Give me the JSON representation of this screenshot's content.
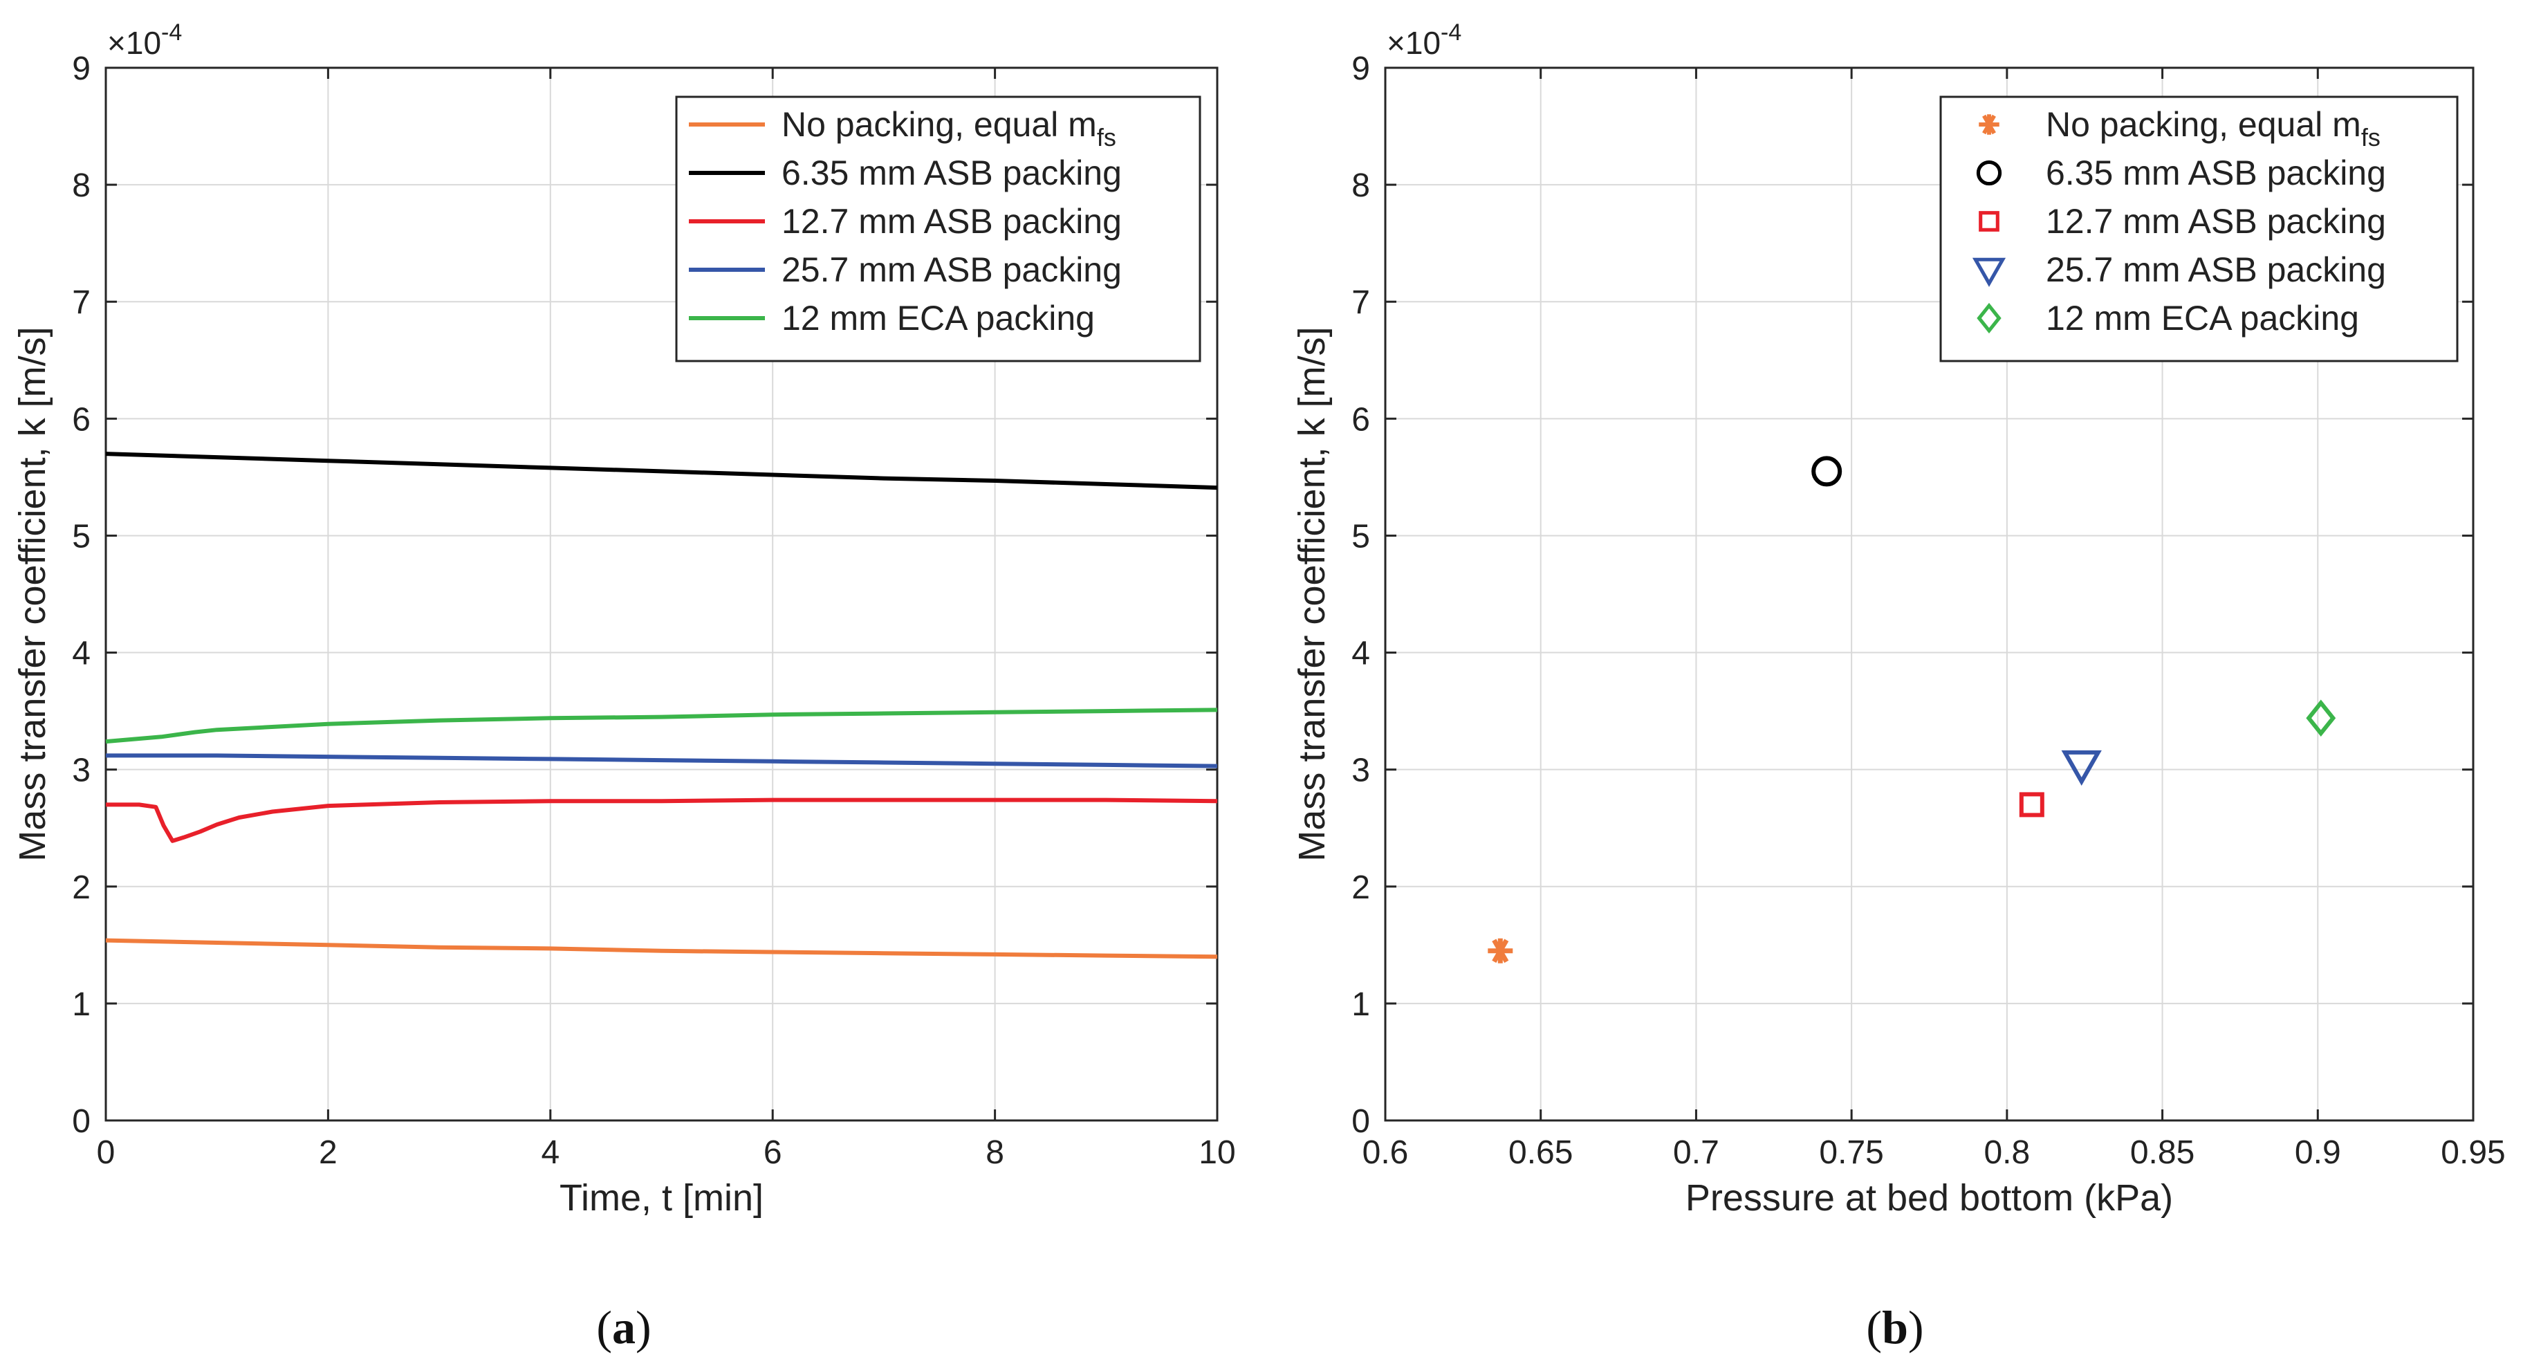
{
  "chart_data": [
    {
      "type": "line",
      "panel_label": "a",
      "xlabel": "Time, t [min]",
      "ylabel": "Mass transfer coefficient, k [m/s]",
      "exponent_label": "×10",
      "exponent_power": "-4",
      "xlim": [
        0,
        10
      ],
      "ylim": [
        0,
        9
      ],
      "xticks": [
        "0",
        "2",
        "4",
        "6",
        "8",
        "10"
      ],
      "yticks": [
        "0",
        "1",
        "2",
        "3",
        "4",
        "5",
        "6",
        "7",
        "8",
        "9"
      ],
      "grid": true,
      "legend_position": "top-right",
      "series": [
        {
          "name": "No packing, equal m",
          "subscript": "fs",
          "color": "#f07c3c",
          "x": [
            0,
            1,
            2,
            3,
            4,
            5,
            6,
            7,
            8,
            9,
            10
          ],
          "y": [
            1.54,
            1.52,
            1.5,
            1.48,
            1.47,
            1.45,
            1.44,
            1.43,
            1.42,
            1.41,
            1.4
          ]
        },
        {
          "name": "6.35 mm ASB packing",
          "subscript": "",
          "color": "#000000",
          "x": [
            0,
            1,
            2,
            3,
            4,
            5,
            6,
            7,
            8,
            9,
            10
          ],
          "y": [
            5.7,
            5.67,
            5.64,
            5.61,
            5.58,
            5.55,
            5.52,
            5.49,
            5.47,
            5.44,
            5.41
          ]
        },
        {
          "name": "12.7 mm ASB packing",
          "subscript": "",
          "color": "#e8202a",
          "x": [
            0,
            0.3,
            0.45,
            0.52,
            0.6,
            0.7,
            0.85,
            1.0,
            1.2,
            1.5,
            2.0,
            3.0,
            4.0,
            5.0,
            6.0,
            7.0,
            8.0,
            9.0,
            10.0
          ],
          "y": [
            2.7,
            2.7,
            2.68,
            2.52,
            2.39,
            2.42,
            2.47,
            2.53,
            2.59,
            2.64,
            2.69,
            2.72,
            2.73,
            2.73,
            2.74,
            2.74,
            2.74,
            2.74,
            2.73
          ]
        },
        {
          "name": "25.7 mm ASB packing",
          "subscript": "",
          "color": "#3556a8",
          "x": [
            0,
            1,
            2,
            3,
            4,
            5,
            6,
            7,
            8,
            9,
            10
          ],
          "y": [
            3.12,
            3.12,
            3.11,
            3.1,
            3.09,
            3.08,
            3.07,
            3.06,
            3.05,
            3.04,
            3.03
          ]
        },
        {
          "name": "12 mm ECA packing",
          "subscript": "",
          "color": "#3bb54a",
          "x": [
            0,
            0.5,
            0.8,
            1,
            2,
            3,
            4,
            5,
            6,
            7,
            8,
            9,
            10
          ],
          "y": [
            3.24,
            3.28,
            3.32,
            3.34,
            3.39,
            3.42,
            3.44,
            3.45,
            3.47,
            3.48,
            3.49,
            3.5,
            3.51
          ]
        }
      ]
    },
    {
      "type": "scatter",
      "panel_label": "b",
      "xlabel": "Pressure at bed bottom (kPa)",
      "ylabel": "Mass transfer coefficient, k [m/s]",
      "exponent_label": "×10",
      "exponent_power": "-4",
      "xlim": [
        0.6,
        0.95
      ],
      "ylim": [
        0,
        9
      ],
      "xticks": [
        "0.6",
        "0.65",
        "0.7",
        "0.75",
        "0.8",
        "0.85",
        "0.9",
        "0.95"
      ],
      "yticks": [
        "0",
        "1",
        "2",
        "3",
        "4",
        "5",
        "6",
        "7",
        "8",
        "9"
      ],
      "grid": true,
      "legend_position": "top-right",
      "series": [
        {
          "name": "No packing, equal m",
          "subscript": "fs",
          "color": "#f07c3c",
          "marker": "asterisk",
          "x": 0.637,
          "y": 1.45
        },
        {
          "name": "6.35 mm ASB packing",
          "subscript": "",
          "color": "#000000",
          "marker": "circle",
          "x": 0.742,
          "y": 5.55
        },
        {
          "name": "12.7 mm ASB packing",
          "subscript": "",
          "color": "#e8202a",
          "marker": "square",
          "x": 0.808,
          "y": 2.7
        },
        {
          "name": "25.7 mm ASB packing",
          "subscript": "",
          "color": "#3556a8",
          "marker": "triangle-down",
          "x": 0.824,
          "y": 3.04
        },
        {
          "name": "12 mm ECA packing",
          "subscript": "",
          "color": "#3bb54a",
          "marker": "diamond",
          "x": 0.901,
          "y": 3.44
        }
      ]
    }
  ]
}
